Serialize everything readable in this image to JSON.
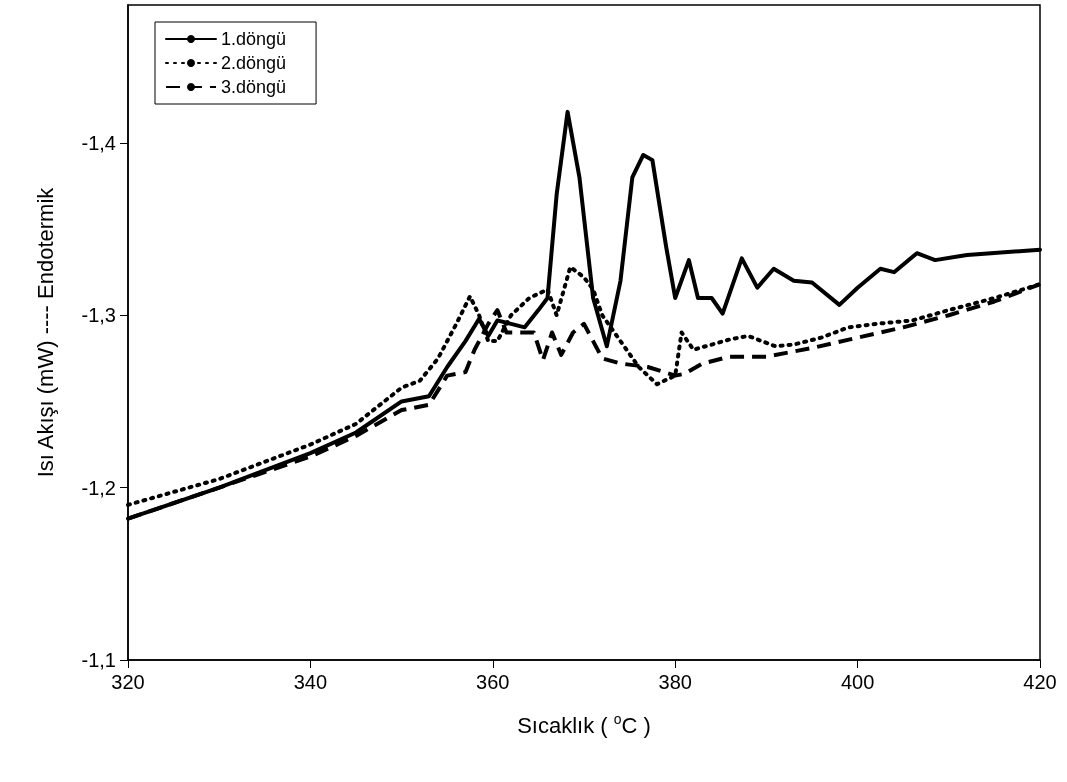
{
  "chart_data": {
    "type": "line",
    "xlabel": "Sıcaklık ( $^{o}$C )",
    "ylabel": "Isı Akışı (mW) ---- Endotermik",
    "xlim": [
      320,
      420
    ],
    "xticks": [
      320,
      340,
      360,
      380,
      400,
      420
    ],
    "ylim": [
      -1.1,
      -1.48
    ],
    "yticks": [
      {
        "value": -1.1,
        "label": "-1,1"
      },
      {
        "value": -1.2,
        "label": "-1,2"
      },
      {
        "value": -1.3,
        "label": "-1,3"
      },
      {
        "value": -1.4,
        "label": "-1,4"
      }
    ],
    "grid": false,
    "legend": "top left",
    "marker": "none",
    "series": [
      {
        "name": "1.döngü",
        "color": "#000000",
        "line_style": "solid",
        "x": [
          320,
          330,
          340,
          345,
          350,
          353,
          355,
          357,
          358.5,
          359.5,
          360.5,
          362,
          363.5,
          365,
          366,
          367,
          368.2,
          369.5,
          371,
          372.5,
          374,
          375.3,
          376.5,
          377.5,
          379,
          380,
          381.5,
          382.5,
          384,
          385.2,
          387.3,
          389,
          390.8,
          393,
          395,
          398,
          400,
          402.5,
          404,
          406.5,
          408.5,
          412,
          420
        ],
        "values": [
          -1.182,
          -1.2,
          -1.22,
          -1.232,
          -1.25,
          -1.253,
          -1.27,
          -1.285,
          -1.298,
          -1.288,
          -1.297,
          -1.295,
          -1.293,
          -1.303,
          -1.31,
          -1.37,
          -1.418,
          -1.38,
          -1.31,
          -1.282,
          -1.32,
          -1.38,
          -1.393,
          -1.39,
          -1.34,
          -1.31,
          -1.332,
          -1.31,
          -1.31,
          -1.301,
          -1.333,
          -1.316,
          -1.327,
          -1.32,
          -1.319,
          -1.306,
          -1.316,
          -1.327,
          -1.325,
          -1.336,
          -1.332,
          -1.335,
          -1.338
        ]
      },
      {
        "name": "2.döngü",
        "color": "#000000",
        "line_style": "dotted",
        "x": [
          320,
          330,
          340,
          345,
          350,
          352,
          354,
          356,
          357.5,
          358.5,
          359.5,
          360.5,
          362,
          364,
          366,
          367,
          368.5,
          370,
          371,
          372,
          374,
          376,
          378,
          380,
          380.7,
          382,
          384,
          386,
          388,
          390,
          391,
          393,
          396,
          399,
          402,
          406,
          410,
          415,
          420
        ],
        "values": [
          -1.19,
          -1.205,
          -1.225,
          -1.237,
          -1.258,
          -1.262,
          -1.275,
          -1.295,
          -1.311,
          -1.3,
          -1.285,
          -1.285,
          -1.3,
          -1.31,
          -1.315,
          -1.3,
          -1.328,
          -1.322,
          -1.315,
          -1.3,
          -1.285,
          -1.27,
          -1.26,
          -1.265,
          -1.29,
          -1.28,
          -1.283,
          -1.286,
          -1.288,
          -1.284,
          -1.282,
          -1.283,
          -1.287,
          -1.293,
          -1.295,
          -1.297,
          -1.303,
          -1.31,
          -1.318
        ]
      },
      {
        "name": "3.döngü",
        "color": "#000000",
        "line_style": "dashed",
        "x": [
          320,
          330,
          340,
          345,
          350,
          353,
          355,
          356,
          357,
          358,
          359.5,
          360.5,
          361.5,
          362.5,
          364.5,
          365.5,
          366.5,
          367.5,
          368.8,
          370,
          371,
          372,
          374,
          377,
          380,
          381,
          383,
          386,
          390,
          395,
          400,
          405,
          410,
          415,
          420
        ],
        "values": [
          -1.182,
          -1.2,
          -1.218,
          -1.23,
          -1.245,
          -1.248,
          -1.265,
          -1.266,
          -1.267,
          -1.28,
          -1.295,
          -1.303,
          -1.29,
          -1.29,
          -1.29,
          -1.274,
          -1.29,
          -1.277,
          -1.29,
          -1.295,
          -1.285,
          -1.275,
          -1.272,
          -1.27,
          -1.265,
          -1.266,
          -1.272,
          -1.276,
          -1.276,
          -1.281,
          -1.287,
          -1.293,
          -1.3,
          -1.308,
          -1.318
        ]
      }
    ]
  }
}
